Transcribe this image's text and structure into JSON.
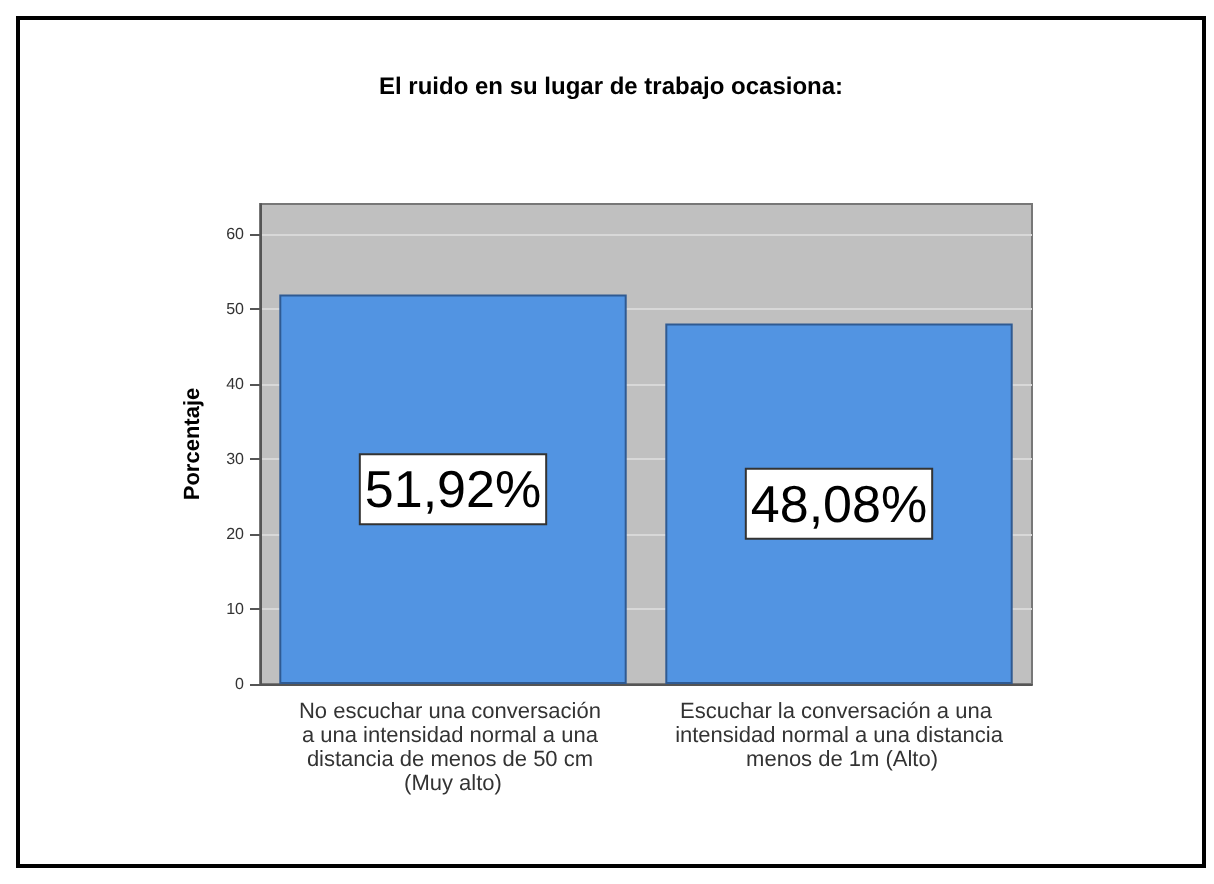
{
  "chart_data": {
    "type": "bar",
    "title": "El ruido en su lugar de trabajo ocasiona:",
    "ylabel": "Porcentaje",
    "categories": [
      "No escuchar una conversación a una intensidad normal a una distancia de menos de 50 cm (Muy alto)",
      "Escuchar la conversación a una intensidad normal a una distancia menos de 1m (Alto)"
    ],
    "values": [
      51.92,
      48.08
    ],
    "value_labels": [
      "51,92%",
      "48,08%"
    ],
    "color": "#5294e2",
    "ylim": [
      0,
      64
    ],
    "yticks": [
      0,
      10,
      20,
      30,
      40,
      50,
      60
    ],
    "grid": "y"
  }
}
